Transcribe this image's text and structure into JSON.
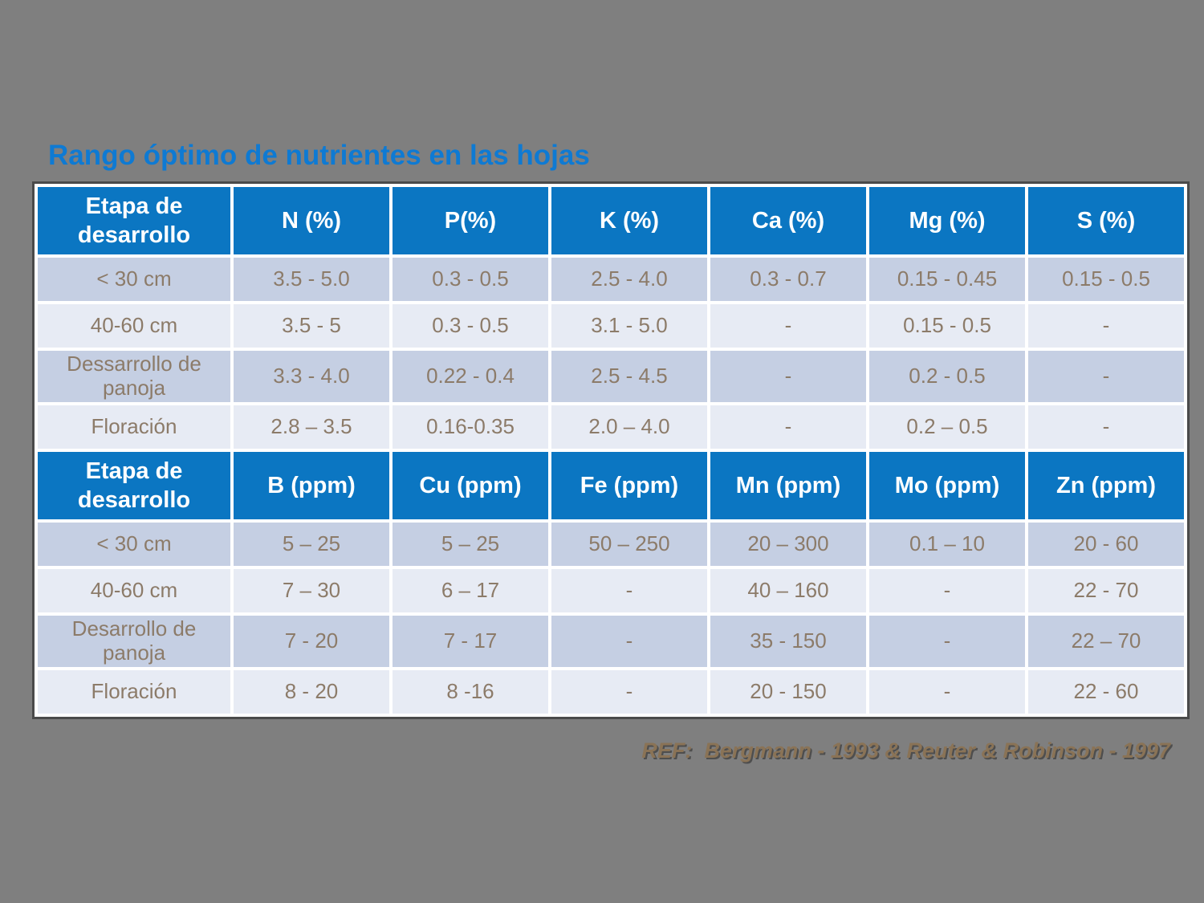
{
  "title": "Rango óptimo de nutrientes en las hojas",
  "footer": {
    "text": "REF:  Bergmann - 1993 & Reuter & Robinson - 1997"
  },
  "colors": {
    "background": "#7F7F7F",
    "title_blue": "#0E7AD3",
    "header_blue": "#0B76C2",
    "row_dark": "#C5CFE3",
    "row_light": "#E7EBF4",
    "cell_text": "#8C7B69",
    "footer_text": "#8A7356"
  },
  "table": {
    "sections": [
      {
        "header": [
          "Etapa de desarrollo",
          "N (%)",
          "P(%)",
          "K (%)",
          "Ca (%)",
          "Mg (%)",
          "S (%)"
        ],
        "rows": [
          [
            "< 30 cm",
            "3.5 - 5.0",
            "0.3 - 0.5",
            "2.5 - 4.0",
            "0.3 - 0.7",
            "0.15 - 0.45",
            "0.15 - 0.5"
          ],
          [
            "40-60 cm",
            "3.5 - 5",
            "0.3 - 0.5",
            "3.1 - 5.0",
            "-",
            "0.15 - 0.5",
            "-"
          ],
          [
            "Dessarrollo de panoja",
            "3.3 - 4.0",
            "0.22 - 0.4",
            "2.5 - 4.5",
            "-",
            "0.2 - 0.5",
            "-"
          ],
          [
            "Floración",
            "2.8 – 3.5",
            "0.16-0.35",
            "2.0 – 4.0",
            "-",
            "0.2 – 0.5",
            "-"
          ]
        ]
      },
      {
        "header": [
          "Etapa de desarrollo",
          "B (ppm)",
          "Cu (ppm)",
          "Fe (ppm)",
          "Mn (ppm)",
          "Mo (ppm)",
          "Zn (ppm)"
        ],
        "rows": [
          [
            "< 30 cm",
            "5 – 25",
            "5 – 25",
            "50 – 250",
            "20 – 300",
            "0.1 – 10",
            "20 - 60"
          ],
          [
            "40-60 cm",
            "7 – 30",
            "6 – 17",
            "-",
            "40 – 160",
            "-",
            "22 - 70"
          ],
          [
            "Desarrollo de panoja",
            "7 - 20",
            "7 - 17",
            "-",
            "35 - 150",
            "-",
            "22 – 70"
          ],
          [
            "Floración",
            "8 - 20",
            "8 -16",
            "-",
            "20 - 150",
            "-",
            "22 - 60"
          ]
        ]
      }
    ]
  }
}
